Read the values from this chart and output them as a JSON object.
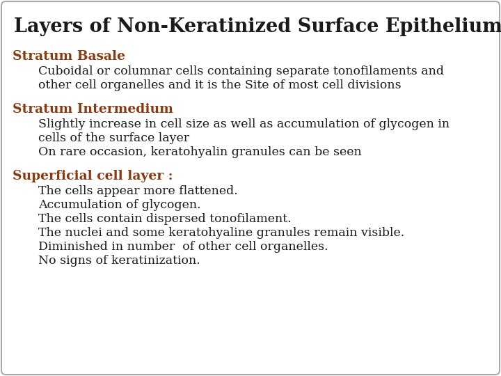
{
  "title": "Layers of Non-Keratinized Surface Epithelium",
  "title_color": "#1a1a1a",
  "title_fontsize": 19.5,
  "background_color": "#ffffff",
  "border_color": "#aaaaaa",
  "heading_color": "#8B3A10",
  "body_color": "#1a1a1a",
  "heading_fontsize": 13.5,
  "body_fontsize": 12.5,
  "sections": [
    {
      "heading": "Stratum Basale",
      "lines": [
        "Cuboidal or columnar cells containing separate tonofilaments and",
        "other cell organelles and it is the Site of most cell divisions"
      ]
    },
    {
      "heading": "Stratum Intermedium",
      "lines": [
        "Slightly increase in cell size as well as accumulation of glycogen in",
        "cells of the surface layer",
        "On rare occasion, keratohyalin granules can be seen"
      ]
    },
    {
      "heading": "Superficial cell layer :",
      "lines": [
        "The cells appear more flattened.",
        "Accumulation of glycogen.",
        "The cells contain dispersed tonofilament.",
        "The nuclei and some keratohyaline granules remain visible.",
        "Diminished in number  of other cell organelles.",
        "No signs of keratinization."
      ]
    }
  ]
}
